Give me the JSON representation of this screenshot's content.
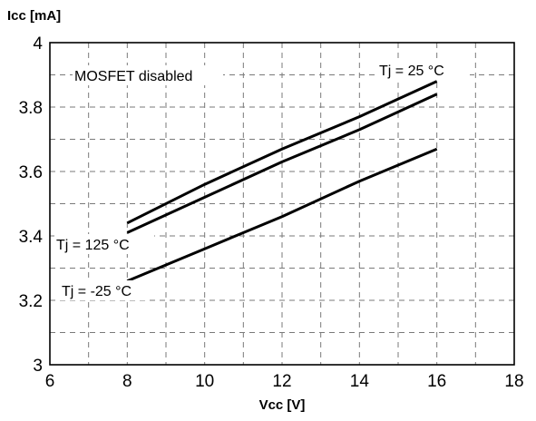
{
  "chart_data": {
    "type": "line",
    "title": "",
    "xlabel": "Vcc [V]",
    "ylabel": "Icc [mA]",
    "xlim": [
      6,
      18
    ],
    "ylim": [
      3,
      4
    ],
    "x_ticks": [
      "6",
      "8",
      "10",
      "12",
      "14",
      "16",
      "18"
    ],
    "y_ticks": [
      "3",
      "3.2",
      "3.4",
      "3.6",
      "3.8",
      "4"
    ],
    "grid": true,
    "annotation": "MOSFET disabled",
    "series": [
      {
        "name": "Tj = 25 °C",
        "points": [
          [
            8,
            3.44
          ],
          [
            10,
            3.56
          ],
          [
            12,
            3.67
          ],
          [
            14,
            3.77
          ],
          [
            16,
            3.88
          ]
        ]
      },
      {
        "name": "Tj = 125 °C",
        "points": [
          [
            8,
            3.41
          ],
          [
            10,
            3.52
          ],
          [
            12,
            3.63
          ],
          [
            14,
            3.73
          ],
          [
            16,
            3.84
          ]
        ]
      },
      {
        "name": "Tj = -25 °C",
        "points": [
          [
            8,
            3.26
          ],
          [
            10,
            3.36
          ],
          [
            12,
            3.46
          ],
          [
            14,
            3.57
          ],
          [
            16,
            3.67
          ]
        ]
      }
    ]
  }
}
